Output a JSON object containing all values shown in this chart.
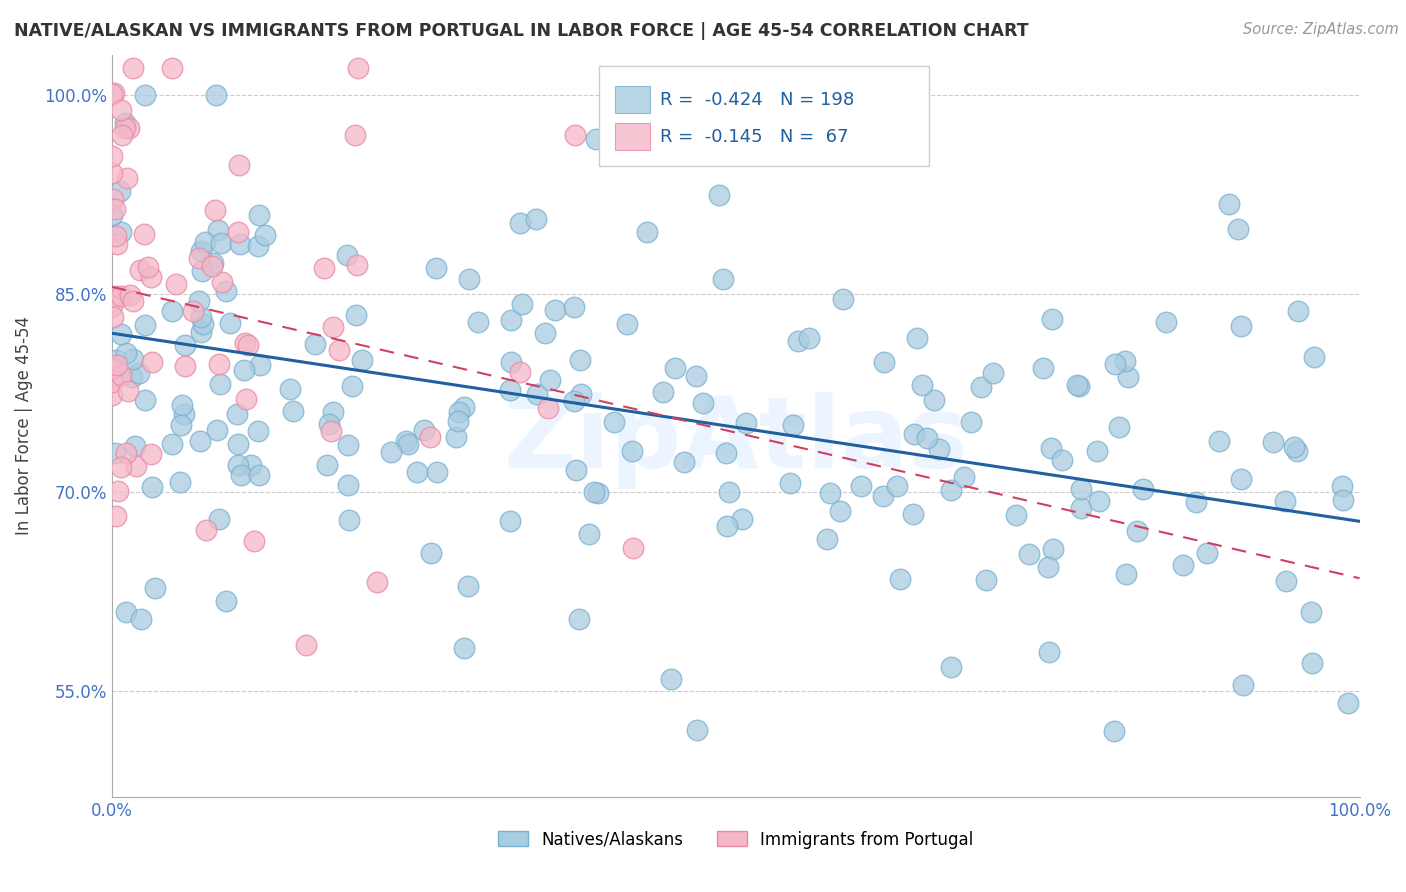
{
  "title": "NATIVE/ALASKAN VS IMMIGRANTS FROM PORTUGAL IN LABOR FORCE | AGE 45-54 CORRELATION CHART",
  "source": "Source: ZipAtlas.com",
  "ylabel": "In Labor Force | Age 45-54",
  "xlim": [
    0.0,
    1.0
  ],
  "ylim": [
    0.47,
    1.03
  ],
  "yticks": [
    0.55,
    0.7,
    0.85,
    1.0
  ],
  "ytick_labels": [
    "55.0%",
    "70.0%",
    "85.0%",
    "100.0%"
  ],
  "xticks": [
    0.0,
    1.0
  ],
  "xtick_labels": [
    "0.0%",
    "100.0%"
  ],
  "blue_R": -0.424,
  "blue_N": 198,
  "pink_R": -0.145,
  "pink_N": 67,
  "blue_color": "#a8cce0",
  "blue_edge_color": "#7ab0d0",
  "pink_color": "#f4b8c8",
  "pink_edge_color": "#e888a8",
  "blue_line_color": "#2060a0",
  "pink_line_color": "#d04060",
  "watermark": "ZipAtlas",
  "legend_label_blue": "Natives/Alaskans",
  "legend_label_pink": "Immigrants from Portugal",
  "blue_trend_x0": 0.0,
  "blue_trend_y0": 0.82,
  "blue_trend_x1": 1.0,
  "blue_trend_y1": 0.678,
  "pink_trend_x0": 0.0,
  "pink_trend_y0": 0.855,
  "pink_trend_x1": 1.0,
  "pink_trend_y1": 0.635
}
